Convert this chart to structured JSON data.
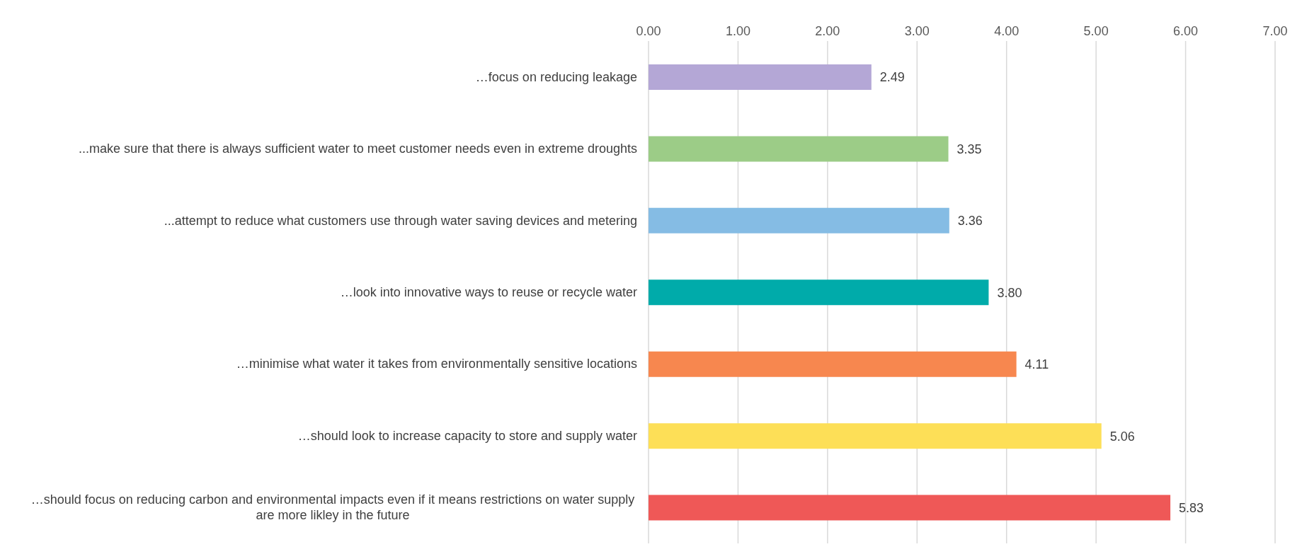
{
  "chart_data": {
    "type": "bar",
    "orientation": "horizontal",
    "categories": [
      "…focus on reducing leakage",
      "...make sure that there is always sufficient water to meet customer needs even in extreme droughts",
      "...attempt to reduce what customers use through water saving devices and metering",
      "…look into innovative ways to reuse or recycle water",
      "…minimise what water it takes from environmentally sensitive locations",
      "…should look to increase capacity to store and supply water",
      "…should focus on reducing carbon and environmental impacts even if it means restrictions on water supply are more likley in the future"
    ],
    "values": [
      2.49,
      3.35,
      3.36,
      3.8,
      4.11,
      5.06,
      5.83
    ],
    "value_labels": [
      "2.49",
      "3.35",
      "3.36",
      "3.80",
      "4.11",
      "5.06",
      "5.83"
    ],
    "colors": [
      "#b4a7d6",
      "#9ccc87",
      "#85bce4",
      "#00abaa",
      "#f7874f",
      "#fddf57",
      "#ef5857"
    ],
    "xlim": [
      0,
      7
    ],
    "xticks": [
      {
        "value": 0,
        "label": "0.00"
      },
      {
        "value": 1,
        "label": "1.00"
      },
      {
        "value": 2,
        "label": "2.00"
      },
      {
        "value": 3,
        "label": "3.00"
      },
      {
        "value": 4,
        "label": "4.00"
      },
      {
        "value": 5,
        "label": "5.00"
      },
      {
        "value": 6,
        "label": "6.00"
      },
      {
        "value": 7,
        "label": "7.00"
      }
    ],
    "grid": "x"
  }
}
